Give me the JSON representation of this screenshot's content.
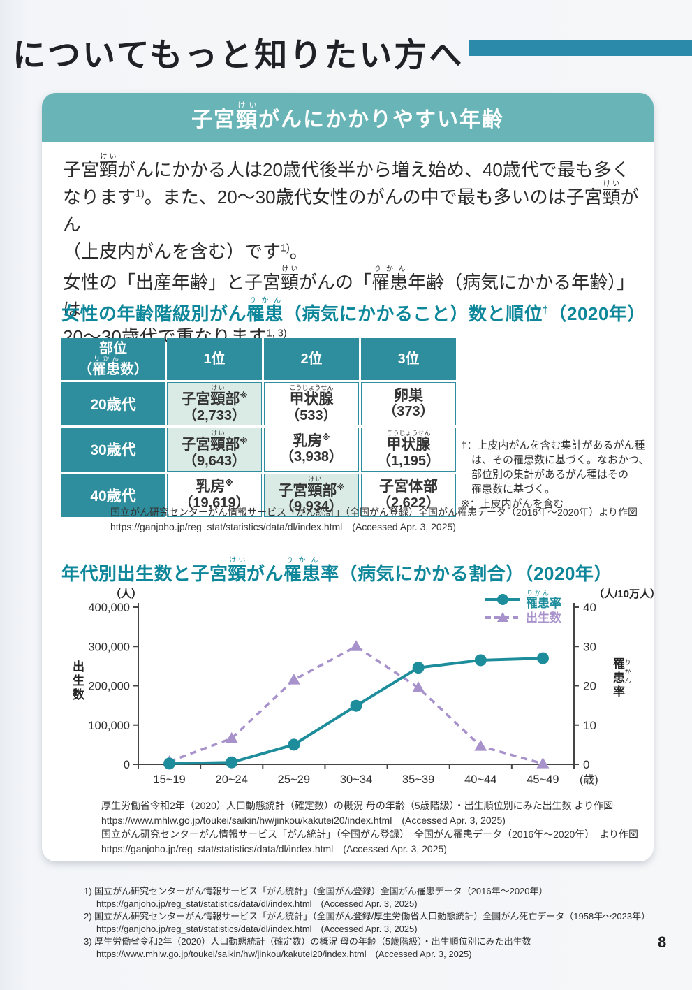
{
  "page": {
    "heading": "についてもっと知りたい方へ",
    "page_number": "8"
  },
  "banner": {
    "title": "子宮[頸|けい]がんにかかりやすい年齢"
  },
  "intro": {
    "p1": "子宮[頸|けい]がんにかかる人は20歳代後半から増え始め、40歳代で最も多く\nなります{1)}。また、20～30歳代女性のがんの中で最も多いのは子宮[頸|けい]がん\n（上皮内がんを含む）です{1)}。",
    "p2": "女性の「出産年齢」と子宮[頸|けい]がんの「[罹患|りかん]年齢（病気にかかる年齢）」は\n20～30歳代で重なります{1, 3)}。"
  },
  "table_section": {
    "title": "女性の年齢階級別がん[罹患|りかん]（病気にかかること）数と順位{†}（2020年）",
    "columns": [
      "部位\n（[罹患|りかん]数）",
      "1位",
      "2位",
      "3位"
    ],
    "rows": [
      {
        "age": "20歳代",
        "cells": [
          {
            "name": "子宮[頸|けい]部{※}",
            "value": "（2,733）",
            "highlight": true
          },
          {
            "name": "[甲状腺|こうじょうせん]",
            "value": "（533）",
            "highlight": false
          },
          {
            "name": "卵巣",
            "value": "（373）",
            "highlight": false
          }
        ]
      },
      {
        "age": "30歳代",
        "cells": [
          {
            "name": "子宮[頸|けい]部{※}",
            "value": "（9,643）",
            "highlight": true
          },
          {
            "name": "乳房{※}",
            "value": "（3,938）",
            "highlight": false
          },
          {
            "name": "[甲状腺|こうじょうせん]",
            "value": "（1,195）",
            "highlight": false
          }
        ]
      },
      {
        "age": "40歳代",
        "cells": [
          {
            "name": "乳房{※}",
            "value": "（19,619）",
            "highlight": false
          },
          {
            "name": "子宮[頸|けい]部{※}",
            "value": "（9,934）",
            "highlight": true
          },
          {
            "name": "子宮体部",
            "value": "（2,622）",
            "highlight": false
          }
        ]
      }
    ],
    "note_dagger": "†：上皮内がんを含む集計があるがん種\n　は、その罹患数に基づく。なおかつ、\n　部位別の集計があるがん種はその\n　罹患数に基づく。",
    "note_asterisk": "※：上皮内がんを含む",
    "source_lines": [
      "国立がん研究センターがん情報サービス「がん統計」（全国がん登録）全国がん罹患データ（2016年～2020年）より作図",
      "https://ganjoho.jp/reg_stat/statistics/data/dl/index.html　(Accessed Apr. 3, 2025)"
    ]
  },
  "chart_section": {
    "title": "年代別出生数と子宮[頸|けい]がん[罹患|りかん]率（病気にかかる割合）（2020年）",
    "source_lines": [
      "厚生労働省令和2年（2020）人口動態統計（確定数）の概況 母の年齢（5歳階級）・出生順位別にみた出生数 より作図",
      "https://www.mhlw.go.jp/toukei/saikin/hw/jinkou/kakutei20/index.html　(Accessed Apr. 3, 2025)",
      "国立がん研究センターがん情報サービス「がん統計」（全国がん登録）　全国がん罹患データ（2016年～2020年）　より作図",
      "https://ganjoho.jp/reg_stat/statistics/data/dl/index.html　(Accessed Apr. 3, 2025)"
    ]
  },
  "chart_data": {
    "type": "line",
    "title": "年代別出生数と子宮頸がん罹患率（病気にかかる割合）（2020年）",
    "categories": [
      "15~19",
      "20~24",
      "25~29",
      "30~34",
      "35~39",
      "40~44",
      "45~49"
    ],
    "x_suffix": "(歳)",
    "grid": false,
    "legend_position": "top-right",
    "left_axis": {
      "unit": "（人）",
      "label": "出生数",
      "label_rich": "出生数",
      "ticks": [
        0,
        100000,
        200000,
        300000,
        400000
      ],
      "max": 400000
    },
    "right_axis": {
      "unit": "（人/10万人）",
      "label": "罹患率",
      "label_rich": "[罹患|りかん]率",
      "ticks": [
        0,
        10,
        20,
        30,
        40
      ],
      "max": 40
    },
    "series": [
      {
        "name": "罹患率",
        "name_rich": "[罹患|りかん]率",
        "axis": "right",
        "style": "solid-circle",
        "color": "#1d8d9c",
        "values": [
          0.2,
          0.5,
          5.0,
          14.9,
          24.6,
          26.5,
          27.0
        ]
      },
      {
        "name": "出生数",
        "name_rich": "出生数",
        "axis": "left",
        "style": "dashed-triangle",
        "color": "#a892cb",
        "values": [
          7000,
          66000,
          215000,
          300000,
          195000,
          46000,
          1600
        ]
      }
    ]
  },
  "footnotes": [
    {
      "marker": "1)",
      "text": "国立がん研究センターがん情報サービス「がん統計」（全国がん登録）全国がん罹患データ（2016年～2020年）",
      "url": "https://ganjoho.jp/reg_stat/statistics/data/dl/index.html　(Accessed Apr. 3, 2025)"
    },
    {
      "marker": "2)",
      "text": "国立がん研究センターがん情報サービス「がん統計」（全国がん登録/厚生労働省人口動態統計）全国がん死亡データ（1958年～2023年）",
      "url": "https://ganjoho.jp/reg_stat/statistics/data/dl/index.html　(Accessed Apr. 3, 2025)"
    },
    {
      "marker": "3)",
      "text": "厚生労働省令和2年（2020）人口動態統計（確定数）の概況 母の年齢（5歳階級）・出生順位別にみた出生数",
      "url": "https://www.mhlw.go.jp/toukei/saikin/hw/jinkou/kakutei20/index.html　(Accessed Apr. 3, 2025)"
    }
  ],
  "colors": {
    "top_bar": "#2b8aa9",
    "banner": "#68b4b6",
    "table_header": "#2e8e9d",
    "highlight_cell": "#daebe6",
    "section_title": "#0f879a",
    "incidence_line": "#1d8d9c",
    "births_line": "#a892cb",
    "axis": "#454545"
  }
}
